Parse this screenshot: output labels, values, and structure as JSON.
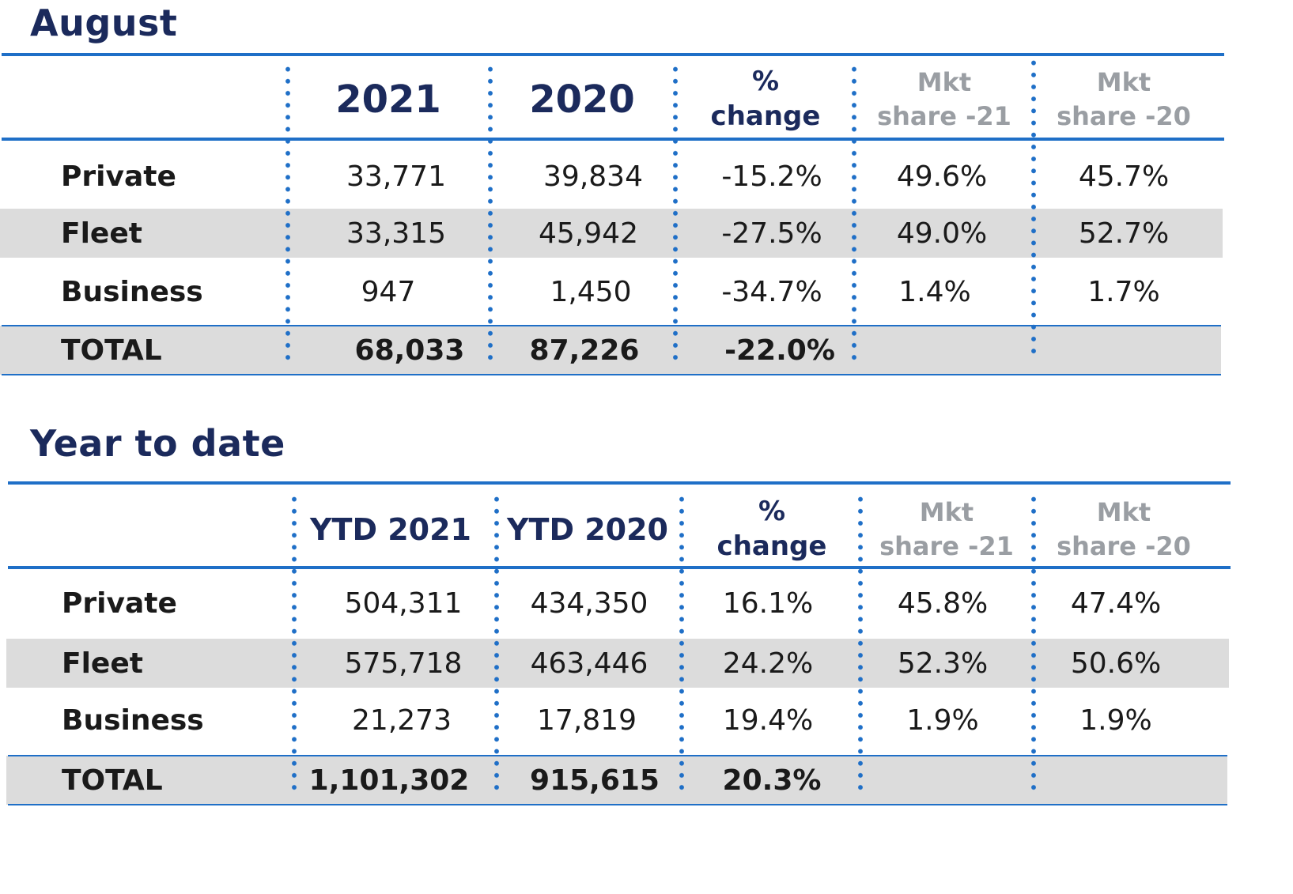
{
  "chart_data": [
    {
      "type": "table",
      "title": "August",
      "columns": [
        "2021",
        "2020",
        "% change",
        "Mkt share -21",
        "Mkt share -20"
      ],
      "header": {
        "year_a": "2021",
        "year_b": "2020",
        "pct_line1": "%",
        "pct_line2": "change",
        "mkt21_line1": "Mkt",
        "mkt21_line2": "share -21",
        "mkt20_line1": "Mkt",
        "mkt20_line2": "share -20"
      },
      "rows": [
        {
          "label": "Private",
          "c2021": "33,771",
          "c2020": "39,834",
          "pct": "-15.2%",
          "mkt21": "49.6%",
          "mkt20": "45.7%"
        },
        {
          "label": "Fleet",
          "c2021": "33,315",
          "c2020": "45,942",
          "pct": "-27.5%",
          "mkt21": "49.0%",
          "mkt20": "52.7%"
        },
        {
          "label": "Business",
          "c2021": "947",
          "c2020": "1,450",
          "pct": "-34.7%",
          "mkt21": "1.4%",
          "mkt20": "1.7%"
        }
      ],
      "total": {
        "label": "TOTAL",
        "c2021": "68,033",
        "c2020": "87,226",
        "pct": "-22.0%"
      }
    },
    {
      "type": "table",
      "title": "Year to date",
      "columns": [
        "YTD 2021",
        "YTD 2020",
        "% change",
        "Mkt share -21",
        "Mkt share -20"
      ],
      "header": {
        "year_a": "YTD 2021",
        "year_b": "YTD 2020",
        "pct_line1": "%",
        "pct_line2": "change",
        "mkt21_line1": "Mkt",
        "mkt21_line2": "share -21",
        "mkt20_line1": "Mkt",
        "mkt20_line2": "share -20"
      },
      "rows": [
        {
          "label": "Private",
          "c2021": "504,311",
          "c2020": "434,350",
          "pct": "16.1%",
          "mkt21": "45.8%",
          "mkt20": "47.4%"
        },
        {
          "label": "Fleet",
          "c2021": "575,718",
          "c2020": "463,446",
          "pct": "24.2%",
          "mkt21": "52.3%",
          "mkt20": "50.6%"
        },
        {
          "label": "Business",
          "c2021": "21,273",
          "c2020": "17,819",
          "pct": "19.4%",
          "mkt21": "1.9%",
          "mkt20": "1.9%"
        }
      ],
      "total": {
        "label": "TOTAL",
        "c2021": "1,101,302",
        "c2020": "915,615",
        "pct": "20.3%"
      }
    }
  ],
  "colors": {
    "accent": "#1f6fc7",
    "title": "#1b2a5c",
    "band": "#dcdcdc",
    "muted": "#9a9ea3"
  }
}
